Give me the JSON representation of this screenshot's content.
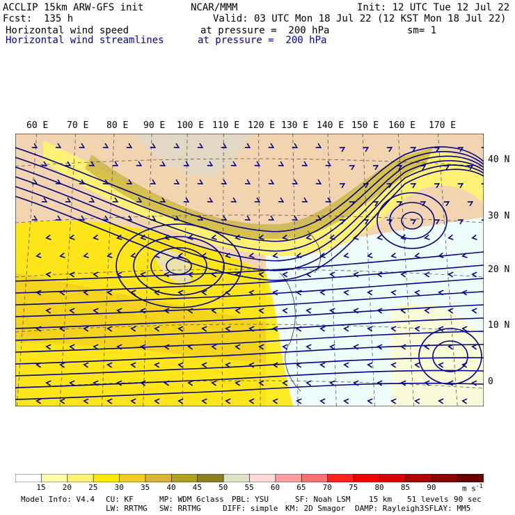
{
  "header": {
    "model_line": "ACCLIP 15km ARW-GFS init",
    "org": "NCAR/MMM",
    "init": "Init: 12 UTC Tue 12 Jul 22",
    "fcst": "Fcst:  135 h",
    "valid": "Valid: 03 UTC Mon 18 Jul 22 (12 KST Mon 18 Jul 22)",
    "field1": "Horizontal wind speed",
    "field1_level": "at pressure =  200 hPa",
    "smooth": "sm= 1",
    "field2": "Horizontal wind streamlines",
    "field2_level": "at pressure =  200 hPa"
  },
  "map": {
    "lon_labels": [
      "60 E",
      "70 E",
      "80 E",
      "90 E",
      "100 E",
      "110 E",
      "120 E",
      "130 E",
      "140 E",
      "150 E",
      "160 E",
      "170 E"
    ],
    "lat_labels": [
      "40 N",
      "30 N",
      "20 N",
      "10 N",
      "0"
    ],
    "streamline_color": "#000080",
    "land_color": "#f2d5b0",
    "ocean_color": "#eefcfc"
  },
  "colorbar": {
    "labels": [
      "15",
      "20",
      "25",
      "30",
      "35",
      "40",
      "45",
      "50",
      "55",
      "60",
      "65",
      "70",
      "75",
      "80",
      "85",
      "90"
    ],
    "unit": "m s",
    "unit_exp": "-1",
    "colors": [
      "#ffffff",
      "#fffab0",
      "#fff176",
      "#ffe800",
      "#f0cc20",
      "#d9b530",
      "#b0a020",
      "#888020",
      "#e0e0c8",
      "#ffd8d8",
      "#ffa0a0",
      "#ff7070",
      "#ff2020",
      "#f00000",
      "#d80000",
      "#b00000",
      "#900000",
      "#6a0000"
    ]
  },
  "footer": {
    "line1": [
      "Model Info: V4.4",
      "CU: KF",
      "MP: WDM 6class",
      "PBL: YSU",
      "SF: Noah LSM",
      "15 km",
      "51 levels",
      "90 sec"
    ],
    "line2": [
      "LW: RRTMG",
      "SW: RRTMG",
      "DIFF: simple",
      "KM: 2D Smagor",
      "DAMP: Rayleigh3",
      "SFLAY: MM5"
    ]
  }
}
